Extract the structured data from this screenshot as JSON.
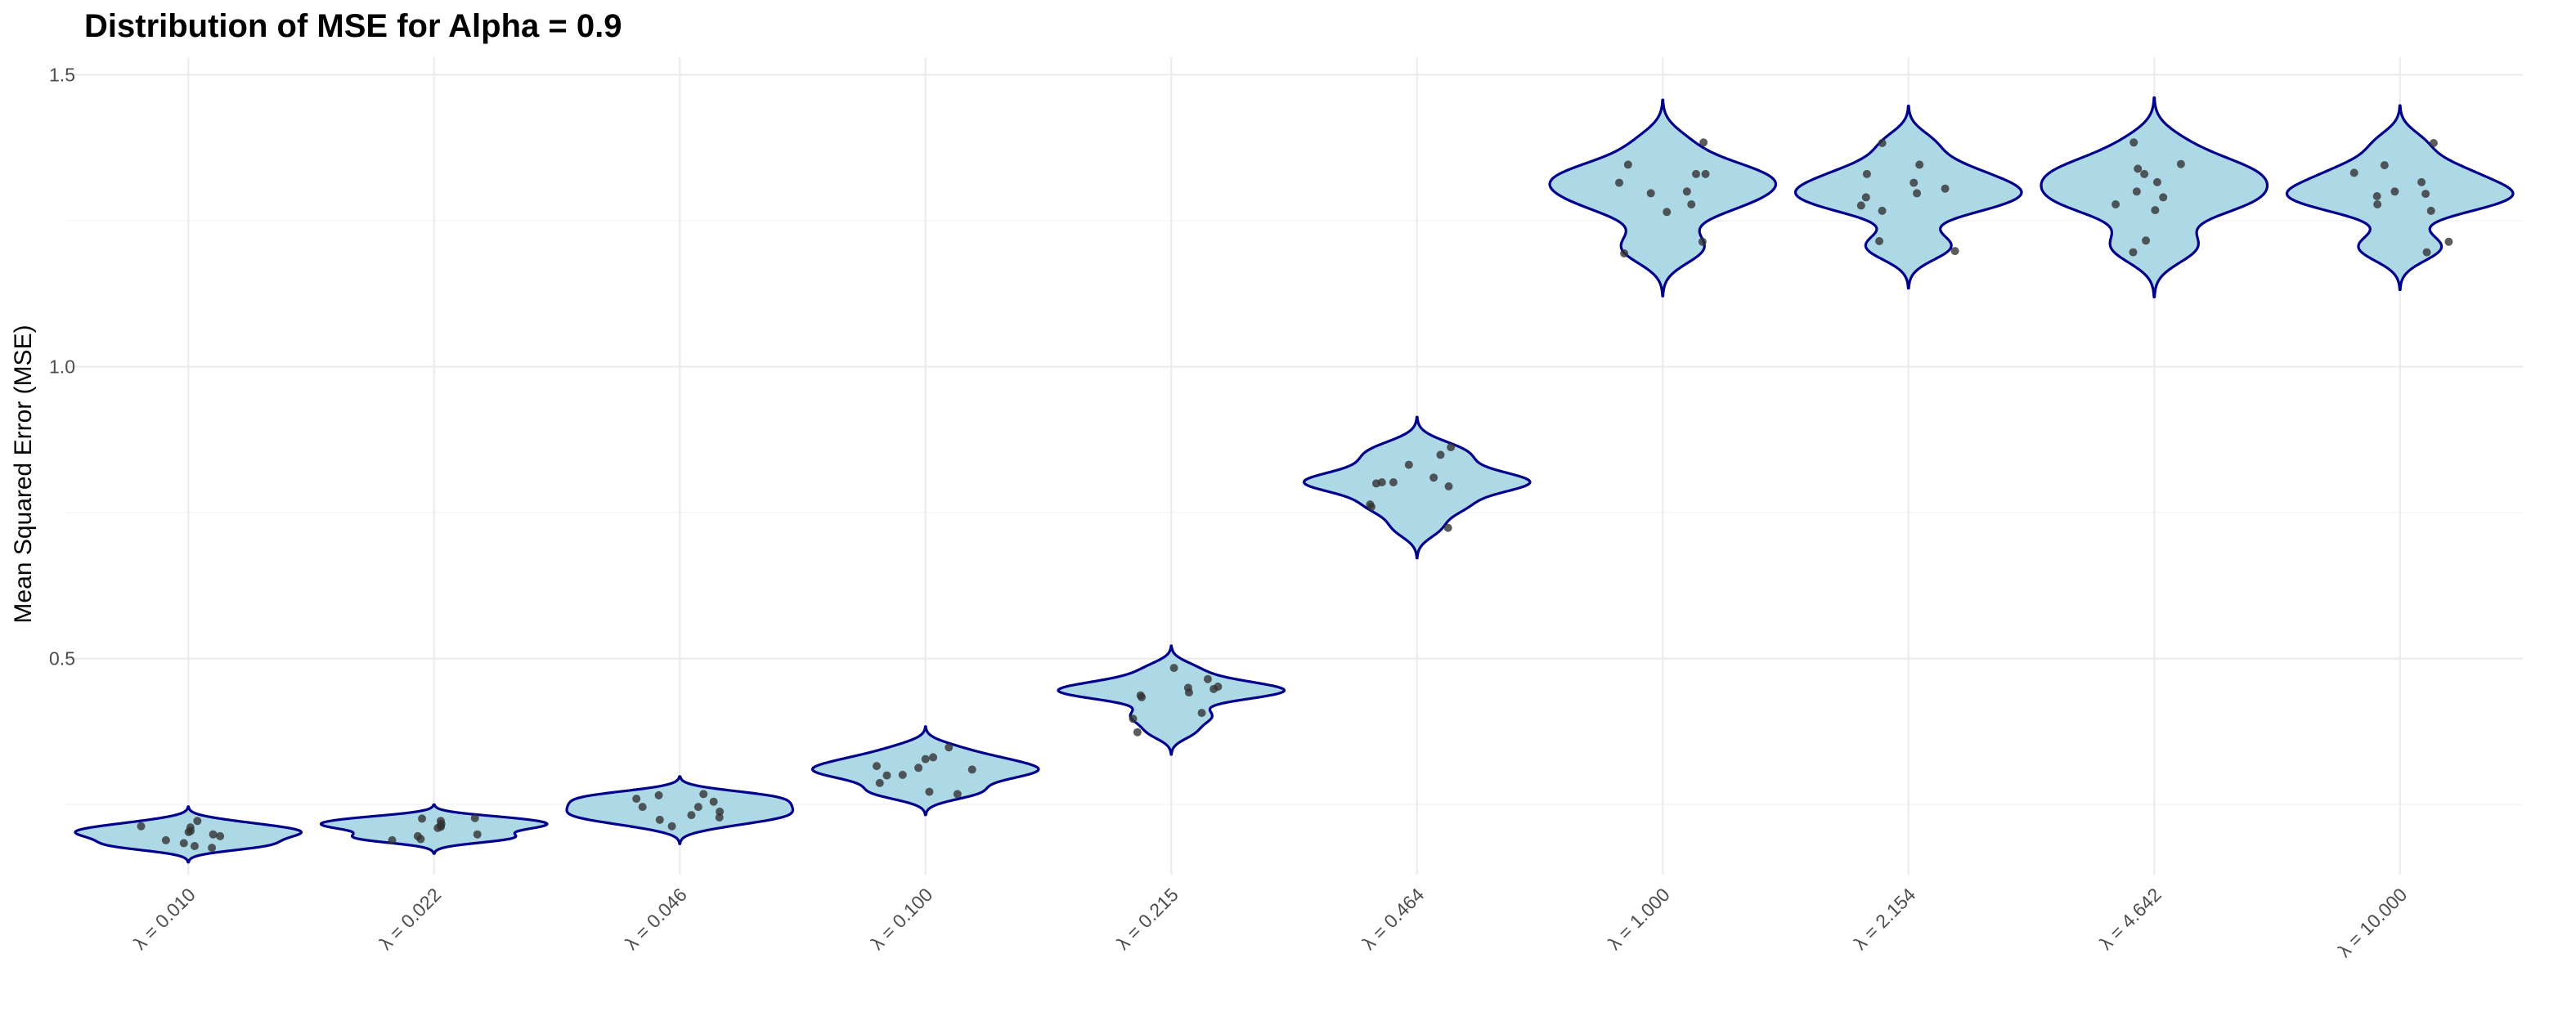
{
  "chart_data": {
    "type": "violin",
    "title": "Distribution of MSE for Alpha = 0.9",
    "xlabel": "",
    "ylabel": "Mean Squared Error (MSE)",
    "categories": [
      "λ = 0.010",
      "λ = 0.022",
      "λ = 0.046",
      "λ = 0.100",
      "λ = 0.215",
      "λ = 0.464",
      "λ = 1.000",
      "λ = 2.154",
      "λ = 4.642",
      "λ = 10.000"
    ],
    "y_ticks": [
      0.5,
      1.0,
      1.5
    ],
    "y_tick_labels": [
      "0.5",
      "1.0",
      "1.5"
    ],
    "ylim": [
      0.13,
      1.53
    ],
    "grid": true,
    "legend": "none",
    "colors": {
      "fill": "#add8e6",
      "outline": "#00008b",
      "points": "#333333"
    },
    "series": [
      {
        "values": [
          0.189,
          0.205,
          0.213,
          0.199,
          0.184,
          0.176,
          0.211,
          0.179,
          0.196,
          0.203,
          0.222
        ]
      },
      {
        "values": [
          0.196,
          0.214,
          0.227,
          0.217,
          0.189,
          0.21,
          0.226,
          0.191,
          0.199,
          0.222,
          0.212
        ]
      },
      {
        "values": [
          0.213,
          0.246,
          0.268,
          0.246,
          0.228,
          0.224,
          0.266,
          0.255,
          0.26,
          0.238,
          0.232
        ]
      },
      {
        "values": [
          0.301,
          0.328,
          0.348,
          0.316,
          0.287,
          0.272,
          0.331,
          0.3,
          0.313,
          0.268,
          0.31
        ]
      },
      {
        "values": [
          0.374,
          0.437,
          0.465,
          0.448,
          0.407,
          0.434,
          0.45,
          0.397,
          0.442,
          0.452,
          0.484
        ]
      },
      {
        "values": [
          0.724,
          0.802,
          0.862,
          0.832,
          0.8,
          0.76,
          0.849,
          0.81,
          0.795,
          0.802,
          0.764
        ]
      },
      {
        "values": [
          1.194,
          1.265,
          1.33,
          1.3,
          1.214,
          1.346,
          1.33,
          1.315,
          1.297,
          1.278,
          1.384
        ]
      },
      {
        "values": [
          1.198,
          1.276,
          1.383,
          1.297,
          1.215,
          1.346,
          1.315,
          1.267,
          1.29,
          1.33,
          1.305
        ]
      },
      {
        "values": [
          1.196,
          1.278,
          1.347,
          1.3,
          1.216,
          1.33,
          1.316,
          1.268,
          1.29,
          1.384,
          1.339
        ]
      },
      {
        "values": [
          1.196,
          1.278,
          1.345,
          1.3,
          1.214,
          1.332,
          1.316,
          1.267,
          1.292,
          1.383,
          1.296
        ]
      }
    ]
  }
}
